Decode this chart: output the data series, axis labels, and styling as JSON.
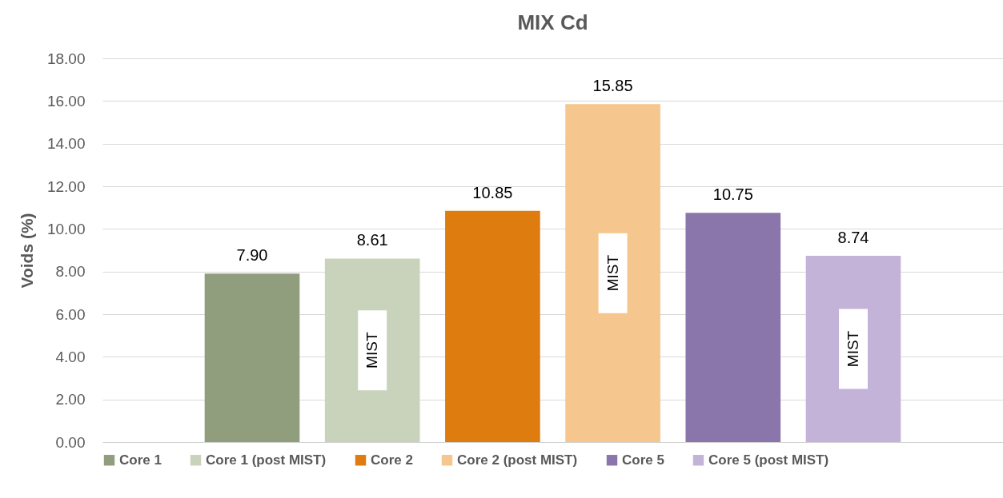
{
  "chart_data": {
    "type": "bar",
    "title": "MIX Cd",
    "ylabel": "Voids (%)",
    "categories": [
      null,
      null,
      null,
      null,
      null,
      null
    ],
    "stacked": true,
    "series": [
      {
        "name": "Core 1",
        "color": "#919e7e",
        "values": [
          7.9,
          null,
          null,
          null,
          null,
          null
        ],
        "value_labels": [
          "7.90",
          null,
          null,
          null,
          null,
          null
        ]
      },
      {
        "name": "Core 1 (post MIST)",
        "color": "#c9d3bb",
        "values": [
          null,
          8.61,
          null,
          null,
          null,
          null
        ],
        "value_labels": [
          null,
          "8.61",
          null,
          null,
          null,
          null
        ]
      },
      {
        "name": "Core 2",
        "color": "#de7c0f",
        "values": [
          null,
          null,
          10.85,
          null,
          null,
          null
        ],
        "value_labels": [
          null,
          null,
          "10.85",
          null,
          null,
          null
        ]
      },
      {
        "name": "Core 2 (post MIST)",
        "color": "#f5c68e",
        "values": [
          null,
          null,
          null,
          15.85,
          null,
          null
        ],
        "value_labels": [
          null,
          null,
          null,
          "15.85",
          null,
          null
        ]
      },
      {
        "name": "Core 5",
        "color": "#8a76aa",
        "values": [
          null,
          null,
          null,
          null,
          10.75,
          null
        ],
        "value_labels": [
          null,
          null,
          null,
          null,
          "10.75",
          null
        ]
      },
      {
        "name": "Core 5 (post MIST)",
        "color": "#c4b3d8",
        "values": [
          null,
          null,
          null,
          null,
          null,
          8.74
        ],
        "value_labels": [
          null,
          null,
          null,
          null,
          null,
          "8.74"
        ]
      }
    ],
    "ylim": [
      0,
      18
    ],
    "yticks": [
      {
        "value": 0,
        "label": "0.00"
      },
      {
        "value": 2,
        "label": "2.00"
      },
      {
        "value": 4,
        "label": "4.00"
      },
      {
        "value": 6,
        "label": "6.00"
      },
      {
        "value": 8,
        "label": "8.00"
      },
      {
        "value": 10,
        "label": "10.00"
      },
      {
        "value": 12,
        "label": "12.00"
      },
      {
        "value": 14,
        "label": "14.00"
      },
      {
        "value": 16,
        "label": "16.00"
      },
      {
        "value": 18,
        "label": "18.00"
      }
    ],
    "grid": true,
    "legend": "bottom",
    "tick_labels": "y",
    "annotations": [
      "MIST",
      "MIST",
      "MIST"
    ]
  }
}
